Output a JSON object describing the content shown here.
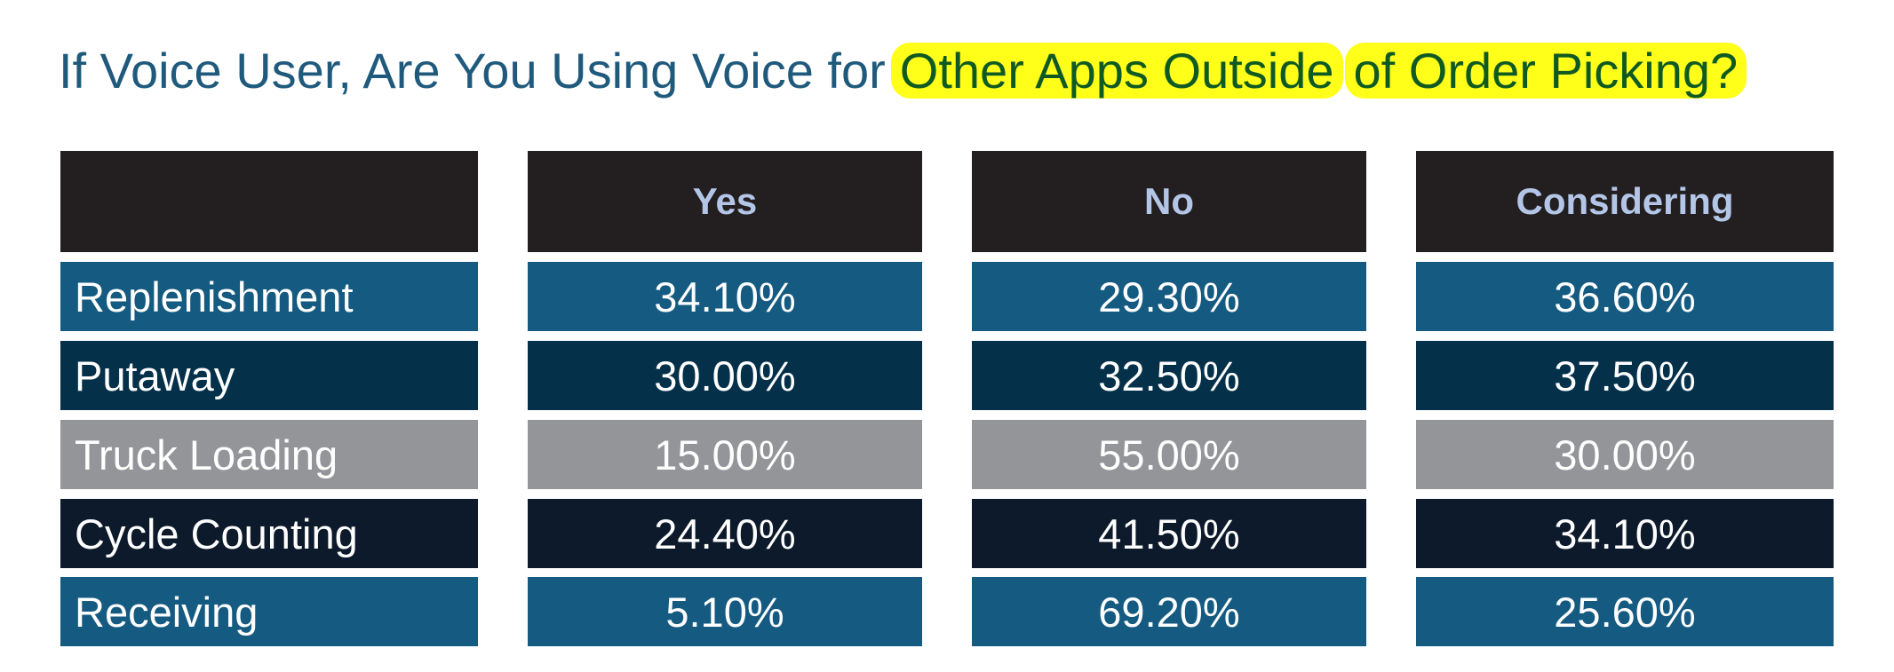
{
  "title": {
    "part1": "If Voice User, Are You Using Voice for",
    "highlight1": "Other Apps Outside",
    "highlight2": "of Order Picking?"
  },
  "colors": {
    "header_bg": "#231f20",
    "header_text": "#b4c6e7",
    "title_text": "#1f5a7d",
    "highlight_bg": "#ffff1a",
    "highlight_text": "#0f5a22",
    "row_colors": [
      "#155a80",
      "#04304a",
      "#949598",
      "#0c1a2b",
      "#155a80"
    ]
  },
  "chart_data": {
    "type": "table",
    "columns": [
      "Yes",
      "No",
      "Considering"
    ],
    "rows": [
      {
        "label": "Replenishment",
        "values": [
          "34.10%",
          "29.30%",
          "36.60%"
        ]
      },
      {
        "label": "Putaway",
        "values": [
          "30.00%",
          "32.50%",
          "37.50%"
        ]
      },
      {
        "label": "Truck Loading",
        "values": [
          "15.00%",
          "55.00%",
          "30.00%"
        ]
      },
      {
        "label": "Cycle Counting",
        "values": [
          "24.40%",
          "41.50%",
          "34.10%"
        ]
      },
      {
        "label": "Receiving",
        "values": [
          "5.10%",
          "69.20%",
          "25.60%"
        ]
      }
    ]
  }
}
